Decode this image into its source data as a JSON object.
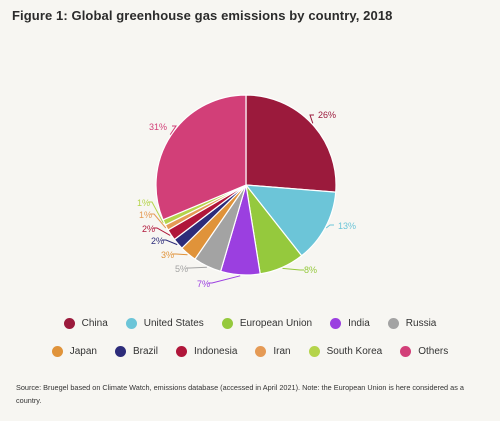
{
  "title": "Figure 1: Global greenhouse gas emissions by country, 2018",
  "source": "Source: Bruegel based on Climate Watch, emissions database (accessed in April 2021). Note: the European Union is here considered as a country.",
  "chart_data": {
    "type": "pie",
    "title": "Figure 1: Global greenhouse gas emissions by country, 2018",
    "unit": "%",
    "legend_placement": "bottom",
    "slices": [
      {
        "label": "China",
        "value": 26,
        "display": "26%",
        "color": "#9b1a3c"
      },
      {
        "label": "United States",
        "value": 13,
        "display": "13%",
        "color": "#6cc5d8"
      },
      {
        "label": "European Union",
        "value": 8,
        "display": "8%",
        "color": "#95c93d"
      },
      {
        "label": "India",
        "value": 7,
        "display": "7%",
        "color": "#9b3fe0"
      },
      {
        "label": "Russia",
        "value": 5,
        "display": "5%",
        "color": "#a3a3a3"
      },
      {
        "label": "Japan",
        "value": 3,
        "display": "3%",
        "color": "#e0933a"
      },
      {
        "label": "Brazil",
        "value": 2,
        "display": "2%",
        "color": "#2d2c7a"
      },
      {
        "label": "Indonesia",
        "value": 2,
        "display": "2%",
        "color": "#b0163a"
      },
      {
        "label": "Iran",
        "value": 1,
        "display": "1%",
        "color": "#e59a55"
      },
      {
        "label": "South Korea",
        "value": 1,
        "display": "1%",
        "color": "#b5d44b"
      },
      {
        "label": "Others",
        "value": 31,
        "display": "31%",
        "color": "#d23f78"
      }
    ]
  }
}
